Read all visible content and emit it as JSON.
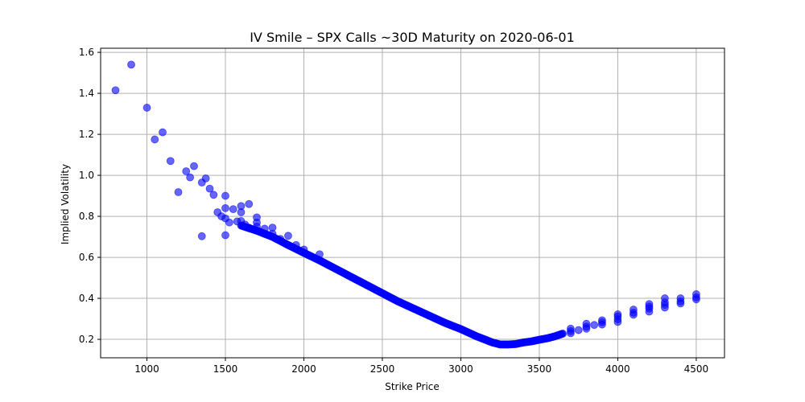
{
  "chart_data": {
    "type": "scatter",
    "title": "IV Smile – SPX Calls ~30D Maturity on 2020-06-01",
    "xlabel": "Strike Price",
    "ylabel": "Implied Volatility",
    "xlim": [
      705,
      4680
    ],
    "ylim": [
      0.11,
      1.62
    ],
    "xticks": [
      1000,
      1500,
      2000,
      2500,
      3000,
      3500,
      4000,
      4500
    ],
    "xtick_labels": [
      "1000",
      "1500",
      "2000",
      "2500",
      "3000",
      "3500",
      "4000",
      "4500"
    ],
    "yticks": [
      0.2,
      0.4,
      0.6,
      0.8,
      1.0,
      1.2,
      1.4,
      1.6
    ],
    "ytick_labels": [
      "0.2",
      "0.4",
      "0.6",
      "0.8",
      "1.0",
      "1.2",
      "1.4",
      "1.6"
    ],
    "grid": true,
    "marker_color": "#0000ff",
    "marker_alpha": 0.6,
    "scattered_points": [
      [
        800,
        1.415
      ],
      [
        900,
        1.54
      ],
      [
        1000,
        1.33
      ],
      [
        1050,
        1.175
      ],
      [
        1100,
        1.21
      ],
      [
        1150,
        1.07
      ],
      [
        1200,
        0.918
      ],
      [
        1250,
        1.02
      ],
      [
        1275,
        0.99
      ],
      [
        1300,
        1.045
      ],
      [
        1350,
        0.965
      ],
      [
        1350,
        0.703
      ],
      [
        1375,
        0.985
      ],
      [
        1400,
        0.935
      ],
      [
        1425,
        0.905
      ],
      [
        1450,
        0.82
      ],
      [
        1475,
        0.8
      ],
      [
        1500,
        0.9
      ],
      [
        1500,
        0.84
      ],
      [
        1500,
        0.79
      ],
      [
        1500,
        0.708
      ],
      [
        1525,
        0.77
      ],
      [
        1550,
        0.835
      ],
      [
        1575,
        0.775
      ],
      [
        1600,
        0.85
      ],
      [
        1600,
        0.82
      ],
      [
        1600,
        0.777
      ],
      [
        1625,
        0.76
      ],
      [
        1650,
        0.86
      ],
      [
        1650,
        0.745
      ],
      [
        1700,
        0.795
      ],
      [
        1700,
        0.77
      ],
      [
        1700,
        0.75
      ],
      [
        1750,
        0.74
      ],
      [
        1800,
        0.745
      ],
      [
        1800,
        0.715
      ],
      [
        1850,
        0.69
      ],
      [
        1900,
        0.705
      ],
      [
        1950,
        0.66
      ],
      [
        2000,
        0.638
      ],
      [
        2100,
        0.615
      ]
    ],
    "dense_curve_anchors": [
      [
        1600,
        0.755
      ],
      [
        1700,
        0.73
      ],
      [
        1800,
        0.7
      ],
      [
        1900,
        0.66
      ],
      [
        2000,
        0.622
      ],
      [
        2100,
        0.585
      ],
      [
        2200,
        0.545
      ],
      [
        2300,
        0.505
      ],
      [
        2400,
        0.465
      ],
      [
        2500,
        0.425
      ],
      [
        2600,
        0.385
      ],
      [
        2700,
        0.35
      ],
      [
        2800,
        0.315
      ],
      [
        2900,
        0.28
      ],
      [
        3000,
        0.25
      ],
      [
        3100,
        0.215
      ],
      [
        3200,
        0.185
      ],
      [
        3250,
        0.175
      ],
      [
        3300,
        0.175
      ],
      [
        3350,
        0.177
      ],
      [
        3400,
        0.185
      ],
      [
        3450,
        0.19
      ],
      [
        3500,
        0.198
      ],
      [
        3550,
        0.205
      ],
      [
        3600,
        0.215
      ],
      [
        3650,
        0.228
      ]
    ],
    "strike_columns": [
      {
        "x": 3700,
        "values": [
          0.23,
          0.24,
          0.252
        ]
      },
      {
        "x": 3750,
        "values": [
          0.245
        ]
      },
      {
        "x": 3800,
        "values": [
          0.252,
          0.262,
          0.276
        ]
      },
      {
        "x": 3850,
        "values": [
          0.27
        ]
      },
      {
        "x": 3900,
        "values": [
          0.272,
          0.283,
          0.293
        ]
      },
      {
        "x": 4000,
        "values": [
          0.285,
          0.298,
          0.312,
          0.322
        ]
      },
      {
        "x": 4100,
        "values": [
          0.32,
          0.33,
          0.345
        ]
      },
      {
        "x": 4200,
        "values": [
          0.335,
          0.35,
          0.36,
          0.372
        ]
      },
      {
        "x": 4300,
        "values": [
          0.355,
          0.368,
          0.38,
          0.4
        ]
      },
      {
        "x": 4400,
        "values": [
          0.375,
          0.385,
          0.4
        ]
      },
      {
        "x": 4500,
        "values": [
          0.395,
          0.405,
          0.42
        ]
      }
    ]
  }
}
